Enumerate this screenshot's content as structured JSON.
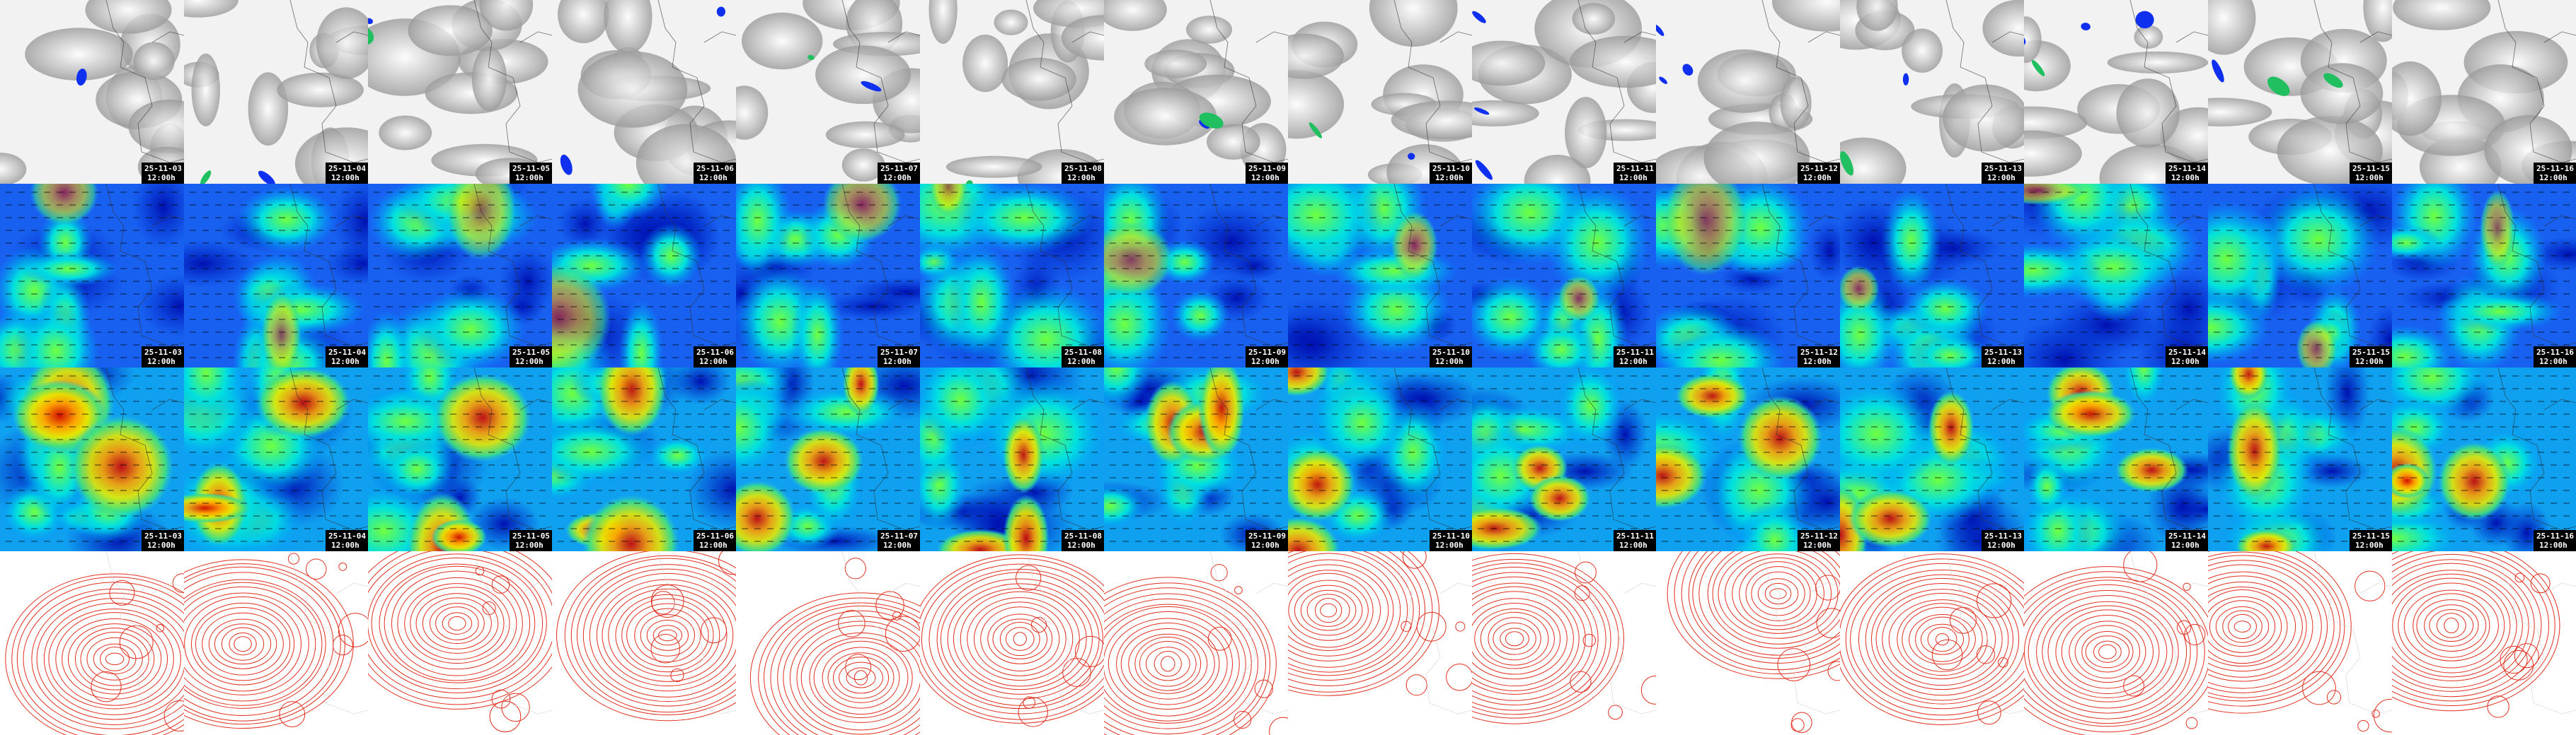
{
  "tiles": {
    "columns": [
      {
        "date": "25-11-03",
        "time": "12:00h"
      },
      {
        "date": "25-11-04",
        "time": "12:00h"
      },
      {
        "date": "25-11-05",
        "time": "12:00h"
      },
      {
        "date": "25-11-06",
        "time": "12:00h"
      },
      {
        "date": "25-11-07",
        "time": "12:00h"
      },
      {
        "date": "25-11-08",
        "time": "12:00h"
      },
      {
        "date": "25-11-09",
        "time": "12:00h"
      },
      {
        "date": "25-11-10",
        "time": "12:00h"
      },
      {
        "date": "25-11-11",
        "time": "12:00h"
      },
      {
        "date": "25-11-12",
        "time": "12:00h"
      },
      {
        "date": "25-11-13",
        "time": "12:00h"
      },
      {
        "date": "25-11-14",
        "time": "12:00h"
      },
      {
        "date": "25-11-15",
        "time": "12:00h"
      },
      {
        "date": "25-11-16",
        "time": "12:00h"
      }
    ]
  }
}
